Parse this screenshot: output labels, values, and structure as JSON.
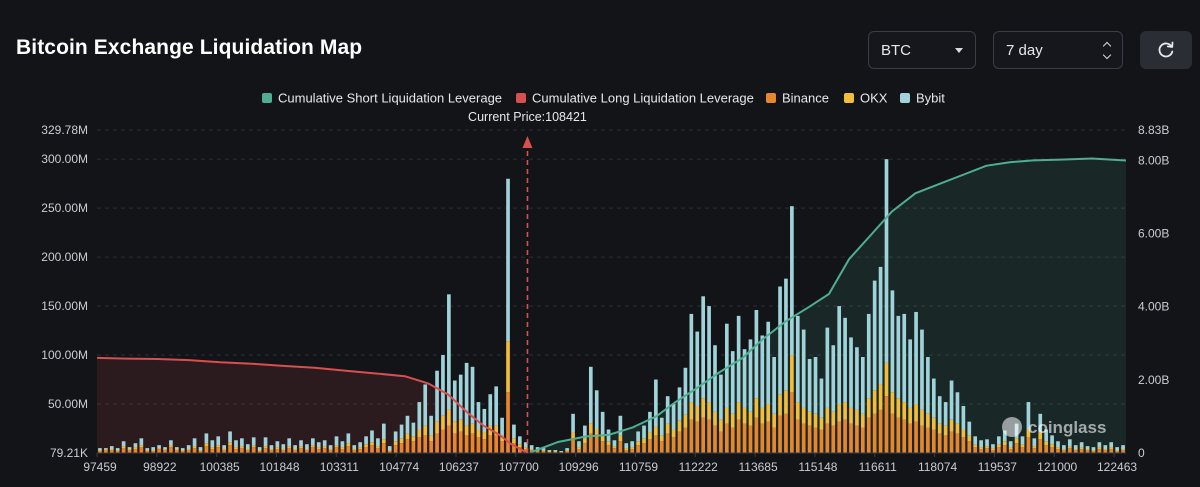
{
  "header": {
    "title": "Bitcoin Exchange Liquidation Map",
    "coin_select": "BTC",
    "period_select": "7 day",
    "refresh_icon": "refresh-icon"
  },
  "colors": {
    "short": "#4fae92",
    "long": "#d84f4f",
    "binance": "#e8862e",
    "okx": "#f2bd3a",
    "bybit": "#9fd3d9",
    "grid": "#2c2f36",
    "axis_text": "#c9ccd2"
  },
  "chart_data": {
    "type": "bar",
    "legend": [
      "Cumulative Short Liquidation Leverage",
      "Cumulative Long Liquidation Leverage",
      "Binance",
      "OKX",
      "Bybit"
    ],
    "current_price_label": "Current Price:108421",
    "current_price": 108421,
    "x_range": [
      97459,
      123663
    ],
    "x_ticks": [
      "97459",
      "98922",
      "100385",
      "101848",
      "103311",
      "104774",
      "106237",
      "107700",
      "109296",
      "110759",
      "112222",
      "113685",
      "115148",
      "116611",
      "118074",
      "119537",
      "121000",
      "122463"
    ],
    "y_left_ticks": [
      "79.21K",
      "50.00M",
      "100.00M",
      "150.00M",
      "200.00M",
      "250.00M",
      "300.00M",
      "329.78M"
    ],
    "y_left_range": [
      0,
      329.78
    ],
    "y_right_ticks": [
      "0",
      "2.00B",
      "4.00B",
      "6.00B",
      "8.00B",
      "8.83B"
    ],
    "y_right_range": [
      0,
      8.83
    ],
    "watermark": "coinglass",
    "bars_m": [
      {
        "binance": 2,
        "okx": 1,
        "bybit": 2
      },
      {
        "binance": 3,
        "okx": 1,
        "bybit": 1
      },
      {
        "binance": 3,
        "okx": 1,
        "bybit": 3
      },
      {
        "binance": 2,
        "okx": 1,
        "bybit": 2
      },
      {
        "binance": 5,
        "okx": 2,
        "bybit": 5
      },
      {
        "binance": 3,
        "okx": 1,
        "bybit": 2
      },
      {
        "binance": 4,
        "okx": 2,
        "bybit": 4
      },
      {
        "binance": 6,
        "okx": 2,
        "bybit": 7
      },
      {
        "binance": 2,
        "okx": 1,
        "bybit": 2
      },
      {
        "binance": 2,
        "okx": 1,
        "bybit": 3
      },
      {
        "binance": 4,
        "okx": 1,
        "bybit": 3
      },
      {
        "binance": 3,
        "okx": 1,
        "bybit": 2
      },
      {
        "binance": 6,
        "okx": 2,
        "bybit": 5
      },
      {
        "binance": 3,
        "okx": 1,
        "bybit": 2
      },
      {
        "binance": 2,
        "okx": 1,
        "bybit": 2
      },
      {
        "binance": 3,
        "okx": 1,
        "bybit": 4
      },
      {
        "binance": 5,
        "okx": 2,
        "bybit": 8
      },
      {
        "binance": 2,
        "okx": 1,
        "bybit": 3
      },
      {
        "binance": 7,
        "okx": 3,
        "bybit": 10
      },
      {
        "binance": 4,
        "okx": 2,
        "bybit": 7
      },
      {
        "binance": 6,
        "okx": 2,
        "bybit": 9
      },
      {
        "binance": 3,
        "okx": 1,
        "bybit": 4
      },
      {
        "binance": 8,
        "okx": 3,
        "bybit": 11
      },
      {
        "binance": 4,
        "okx": 2,
        "bybit": 7
      },
      {
        "binance": 5,
        "okx": 2,
        "bybit": 8
      },
      {
        "binance": 3,
        "okx": 1,
        "bybit": 5
      },
      {
        "binance": 6,
        "okx": 2,
        "bybit": 8
      },
      {
        "binance": 2,
        "okx": 1,
        "bybit": 3
      },
      {
        "binance": 5,
        "okx": 2,
        "bybit": 9
      },
      {
        "binance": 3,
        "okx": 1,
        "bybit": 4
      },
      {
        "binance": 4,
        "okx": 2,
        "bybit": 6
      },
      {
        "binance": 3,
        "okx": 1,
        "bybit": 5
      },
      {
        "binance": 5,
        "okx": 2,
        "bybit": 8
      },
      {
        "binance": 3,
        "okx": 1,
        "bybit": 4
      },
      {
        "binance": 5,
        "okx": 2,
        "bybit": 6
      },
      {
        "binance": 3,
        "okx": 1,
        "bybit": 5
      },
      {
        "binance": 6,
        "okx": 2,
        "bybit": 7
      },
      {
        "binance": 4,
        "okx": 2,
        "bybit": 5
      },
      {
        "binance": 5,
        "okx": 2,
        "bybit": 6
      },
      {
        "binance": 3,
        "okx": 1,
        "bybit": 4
      },
      {
        "binance": 6,
        "okx": 2,
        "bybit": 9
      },
      {
        "binance": 4,
        "okx": 2,
        "bybit": 6
      },
      {
        "binance": 7,
        "okx": 3,
        "bybit": 10
      },
      {
        "binance": 3,
        "okx": 1,
        "bybit": 4
      },
      {
        "binance": 4,
        "okx": 2,
        "bybit": 5
      },
      {
        "binance": 6,
        "okx": 3,
        "bybit": 8
      },
      {
        "binance": 8,
        "okx": 3,
        "bybit": 12
      },
      {
        "binance": 5,
        "okx": 2,
        "bybit": 8
      },
      {
        "binance": 10,
        "okx": 4,
        "bybit": 16
      },
      {
        "binance": 2,
        "okx": 1,
        "bybit": 4
      },
      {
        "binance": 8,
        "okx": 4,
        "bybit": 10
      },
      {
        "binance": 10,
        "okx": 5,
        "bybit": 14
      },
      {
        "binance": 14,
        "okx": 6,
        "bybit": 18
      },
      {
        "binance": 12,
        "okx": 5,
        "bybit": 14
      },
      {
        "binance": 16,
        "okx": 8,
        "bybit": 28
      },
      {
        "binance": 18,
        "okx": 10,
        "bybit": 42
      },
      {
        "binance": 12,
        "okx": 6,
        "bybit": 20
      },
      {
        "binance": 20,
        "okx": 12,
        "bybit": 52
      },
      {
        "binance": 24,
        "okx": 14,
        "bybit": 62
      },
      {
        "binance": 28,
        "okx": 16,
        "bybit": 118
      },
      {
        "binance": 20,
        "okx": 12,
        "bybit": 42
      },
      {
        "binance": 22,
        "okx": 12,
        "bybit": 46
      },
      {
        "binance": 18,
        "okx": 10,
        "bybit": 64
      },
      {
        "binance": 20,
        "okx": 10,
        "bybit": 58
      },
      {
        "binance": 16,
        "okx": 8,
        "bybit": 28
      },
      {
        "binance": 14,
        "okx": 7,
        "bybit": 24
      },
      {
        "binance": 18,
        "okx": 10,
        "bybit": 32
      },
      {
        "binance": 18,
        "okx": 10,
        "bybit": 40
      },
      {
        "binance": 12,
        "okx": 6,
        "bybit": 18
      },
      {
        "binance": 62,
        "okx": 52,
        "bybit": 166
      },
      {
        "binance": 10,
        "okx": 5,
        "bybit": 14
      },
      {
        "binance": 6,
        "okx": 3,
        "bybit": 8
      },
      {
        "binance": 4,
        "okx": 2,
        "bybit": 5
      },
      {
        "binance": 3,
        "okx": 1,
        "bybit": 4
      },
      {
        "binance": 2,
        "okx": 1,
        "bybit": 3
      },
      {
        "binance": 2,
        "okx": 1,
        "bybit": 2
      },
      {
        "binance": 1,
        "okx": 1,
        "bybit": 1
      },
      {
        "binance": 1,
        "okx": 1,
        "bybit": 1
      },
      {
        "binance": 1,
        "okx": 0,
        "bybit": 1
      },
      {
        "binance": 2,
        "okx": 1,
        "bybit": 2
      },
      {
        "binance": 14,
        "okx": 7,
        "bybit": 19
      },
      {
        "binance": 4,
        "okx": 2,
        "bybit": 6
      },
      {
        "binance": 10,
        "okx": 5,
        "bybit": 13
      },
      {
        "binance": 20,
        "okx": 10,
        "bybit": 58
      },
      {
        "binance": 16,
        "okx": 8,
        "bybit": 40
      },
      {
        "binance": 12,
        "okx": 6,
        "bybit": 24
      },
      {
        "binance": 8,
        "okx": 4,
        "bybit": 12
      },
      {
        "binance": 5,
        "okx": 2,
        "bybit": 6
      },
      {
        "binance": 12,
        "okx": 6,
        "bybit": 20
      },
      {
        "binance": 3,
        "okx": 2,
        "bybit": 5
      },
      {
        "binance": 4,
        "okx": 2,
        "bybit": 6
      },
      {
        "binance": 8,
        "okx": 4,
        "bybit": 10
      },
      {
        "binance": 10,
        "okx": 5,
        "bybit": 13
      },
      {
        "binance": 14,
        "okx": 7,
        "bybit": 21
      },
      {
        "binance": 18,
        "okx": 9,
        "bybit": 48
      },
      {
        "binance": 12,
        "okx": 6,
        "bybit": 18
      },
      {
        "binance": 20,
        "okx": 10,
        "bybit": 28
      },
      {
        "binance": 16,
        "okx": 8,
        "bybit": 26
      },
      {
        "binance": 22,
        "okx": 11,
        "bybit": 34
      },
      {
        "binance": 26,
        "okx": 13,
        "bybit": 48
      },
      {
        "binance": 34,
        "okx": 18,
        "bybit": 90
      },
      {
        "binance": 32,
        "okx": 16,
        "bybit": 76
      },
      {
        "binance": 36,
        "okx": 20,
        "bybit": 104
      },
      {
        "binance": 34,
        "okx": 18,
        "bybit": 98
      },
      {
        "binance": 28,
        "okx": 14,
        "bybit": 68
      },
      {
        "binance": 22,
        "okx": 12,
        "bybit": 46
      },
      {
        "binance": 30,
        "okx": 16,
        "bybit": 86
      },
      {
        "binance": 26,
        "okx": 14,
        "bybit": 64
      },
      {
        "binance": 34,
        "okx": 18,
        "bybit": 88
      },
      {
        "binance": 30,
        "okx": 16,
        "bybit": 60
      },
      {
        "binance": 28,
        "okx": 14,
        "bybit": 74
      },
      {
        "binance": 36,
        "okx": 20,
        "bybit": 90
      },
      {
        "binance": 30,
        "okx": 16,
        "bybit": 74
      },
      {
        "binance": 32,
        "okx": 18,
        "bybit": 84
      },
      {
        "binance": 26,
        "okx": 14,
        "bybit": 58
      },
      {
        "binance": 38,
        "okx": 22,
        "bybit": 110
      },
      {
        "binance": 40,
        "okx": 24,
        "bybit": 114
      },
      {
        "binance": 62,
        "okx": 38,
        "bybit": 152
      },
      {
        "binance": 34,
        "okx": 18,
        "bybit": 88
      },
      {
        "binance": 30,
        "okx": 16,
        "bybit": 80
      },
      {
        "binance": 28,
        "okx": 14,
        "bybit": 54
      },
      {
        "binance": 26,
        "okx": 14,
        "bybit": 58
      },
      {
        "binance": 24,
        "okx": 12,
        "bybit": 40
      },
      {
        "binance": 30,
        "okx": 16,
        "bybit": 82
      },
      {
        "binance": 28,
        "okx": 14,
        "bybit": 68
      },
      {
        "binance": 32,
        "okx": 18,
        "bybit": 100
      },
      {
        "binance": 34,
        "okx": 18,
        "bybit": 86
      },
      {
        "binance": 30,
        "okx": 16,
        "bybit": 72
      },
      {
        "binance": 28,
        "okx": 16,
        "bybit": 64
      },
      {
        "binance": 26,
        "okx": 14,
        "bybit": 58
      },
      {
        "binance": 36,
        "okx": 20,
        "bybit": 86
      },
      {
        "binance": 40,
        "okx": 24,
        "bybit": 112
      },
      {
        "binance": 44,
        "okx": 26,
        "bybit": 120
      },
      {
        "binance": 58,
        "okx": 34,
        "bybit": 208
      },
      {
        "binance": 40,
        "okx": 22,
        "bybit": 104
      },
      {
        "binance": 36,
        "okx": 20,
        "bybit": 84
      },
      {
        "binance": 34,
        "okx": 18,
        "bybit": 90
      },
      {
        "binance": 30,
        "okx": 16,
        "bybit": 70
      },
      {
        "binance": 32,
        "okx": 18,
        "bybit": 94
      },
      {
        "binance": 28,
        "okx": 16,
        "bybit": 82
      },
      {
        "binance": 26,
        "okx": 14,
        "bybit": 58
      },
      {
        "binance": 24,
        "okx": 12,
        "bybit": 40
      },
      {
        "binance": 20,
        "okx": 10,
        "bybit": 28
      },
      {
        "binance": 18,
        "okx": 10,
        "bybit": 24
      },
      {
        "binance": 22,
        "okx": 12,
        "bybit": 40
      },
      {
        "binance": 20,
        "okx": 10,
        "bybit": 32
      },
      {
        "binance": 16,
        "okx": 8,
        "bybit": 24
      },
      {
        "binance": 12,
        "okx": 6,
        "bybit": 14
      },
      {
        "binance": 6,
        "okx": 3,
        "bybit": 8
      },
      {
        "binance": 4,
        "okx": 2,
        "bybit": 7
      },
      {
        "binance": 5,
        "okx": 2,
        "bybit": 7
      },
      {
        "binance": 3,
        "okx": 2,
        "bybit": 4
      },
      {
        "binance": 6,
        "okx": 3,
        "bybit": 8
      },
      {
        "binance": 8,
        "okx": 4,
        "bybit": 11
      },
      {
        "binance": 4,
        "okx": 2,
        "bybit": 6
      },
      {
        "binance": 10,
        "okx": 5,
        "bybit": 15
      },
      {
        "binance": 6,
        "okx": 3,
        "bybit": 8
      },
      {
        "binance": 16,
        "okx": 8,
        "bybit": 28
      },
      {
        "binance": 5,
        "okx": 2,
        "bybit": 8
      },
      {
        "binance": 14,
        "okx": 7,
        "bybit": 19
      },
      {
        "binance": 8,
        "okx": 4,
        "bybit": 12
      },
      {
        "binance": 6,
        "okx": 3,
        "bybit": 9
      },
      {
        "binance": 4,
        "okx": 2,
        "bybit": 6
      },
      {
        "binance": 3,
        "okx": 1,
        "bybit": 4
      },
      {
        "binance": 5,
        "okx": 2,
        "bybit": 7
      },
      {
        "binance": 3,
        "okx": 1,
        "bybit": 4
      },
      {
        "binance": 4,
        "okx": 2,
        "bybit": 5
      },
      {
        "binance": 3,
        "okx": 1,
        "bybit": 3
      },
      {
        "binance": 2,
        "okx": 1,
        "bybit": 3
      },
      {
        "binance": 4,
        "okx": 2,
        "bybit": 5
      },
      {
        "binance": 3,
        "okx": 1,
        "bybit": 4
      },
      {
        "binance": 4,
        "okx": 2,
        "bybit": 5
      },
      {
        "binance": 2,
        "okx": 1,
        "bybit": 3
      },
      {
        "binance": 3,
        "okx": 1,
        "bybit": 4
      }
    ],
    "short_curve_b": [
      [
        108500,
        0.02
      ],
      [
        109200,
        0.3
      ],
      [
        109900,
        0.45
      ],
      [
        110500,
        0.5
      ],
      [
        111100,
        0.7
      ],
      [
        111700,
        1.0
      ],
      [
        112200,
        1.4
      ],
      [
        112700,
        1.75
      ],
      [
        113300,
        2.2
      ],
      [
        113900,
        2.6
      ],
      [
        114400,
        3.1
      ],
      [
        115000,
        3.6
      ],
      [
        115600,
        4.0
      ],
      [
        116100,
        4.35
      ],
      [
        116611,
        5.3
      ],
      [
        117200,
        6.0
      ],
      [
        117700,
        6.6
      ],
      [
        118300,
        7.1
      ],
      [
        118900,
        7.35
      ],
      [
        119500,
        7.6
      ],
      [
        120100,
        7.85
      ],
      [
        120700,
        7.95
      ],
      [
        121300,
        8.0
      ],
      [
        122000,
        8.02
      ],
      [
        122800,
        8.05
      ],
      [
        123600,
        8.0
      ]
    ],
    "long_curve_b": [
      [
        97459,
        2.6
      ],
      [
        98200,
        2.58
      ],
      [
        99000,
        2.57
      ],
      [
        99800,
        2.54
      ],
      [
        100600,
        2.48
      ],
      [
        101400,
        2.44
      ],
      [
        102200,
        2.38
      ],
      [
        103000,
        2.33
      ],
      [
        103800,
        2.25
      ],
      [
        104600,
        2.17
      ],
      [
        105300,
        2.1
      ],
      [
        105900,
        1.9
      ],
      [
        106400,
        1.6
      ],
      [
        106900,
        1.1
      ],
      [
        107300,
        0.75
      ],
      [
        107700,
        0.5
      ],
      [
        108000,
        0.25
      ],
      [
        108421,
        0.0
      ]
    ]
  }
}
